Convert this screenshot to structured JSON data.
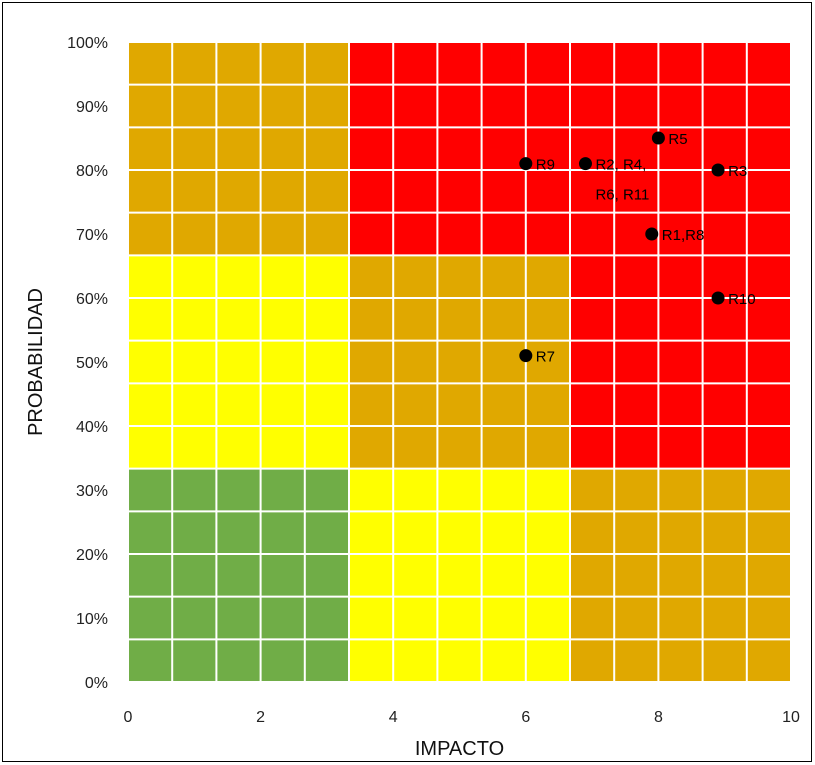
{
  "chart_data": {
    "type": "scatter",
    "title": "",
    "xlabel": "IMPACTO",
    "ylabel": "PROBABILIDAD",
    "xlim": [
      0,
      10
    ],
    "ylim": [
      0,
      100
    ],
    "x_ticks": [
      "0",
      "2",
      "4",
      "6",
      "8",
      "10"
    ],
    "x_tick_values": [
      0,
      2,
      4,
      6,
      8,
      10
    ],
    "y_ticks": [
      "0%",
      "10%",
      "20%",
      "30%",
      "40%",
      "50%",
      "60%",
      "70%",
      "80%",
      "90%",
      "100%"
    ],
    "y_tick_values": [
      0,
      10,
      20,
      30,
      40,
      50,
      60,
      70,
      80,
      90,
      100
    ],
    "grid": true,
    "colors": {
      "green": "#70AD47",
      "yellow": "#FFFF00",
      "orange": "#E0A800",
      "red": "#FF0000",
      "grid_line": "#ffffff",
      "point": "#000000"
    },
    "zones": [
      {
        "x0": 0,
        "x1": 3.33,
        "y0": 0,
        "y1": 33.3,
        "color": "green"
      },
      {
        "x0": 3.33,
        "x1": 6.67,
        "y0": 0,
        "y1": 33.3,
        "color": "yellow"
      },
      {
        "x0": 6.67,
        "x1": 10,
        "y0": 0,
        "y1": 33.3,
        "color": "orange"
      },
      {
        "x0": 0,
        "x1": 3.33,
        "y0": 33.3,
        "y1": 66.7,
        "color": "yellow"
      },
      {
        "x0": 3.33,
        "x1": 6.67,
        "y0": 33.3,
        "y1": 66.7,
        "color": "orange"
      },
      {
        "x0": 6.67,
        "x1": 10,
        "y0": 33.3,
        "y1": 66.7,
        "color": "red"
      },
      {
        "x0": 0,
        "x1": 3.33,
        "y0": 66.7,
        "y1": 100,
        "color": "orange"
      },
      {
        "x0": 3.33,
        "x1": 6.67,
        "y0": 66.7,
        "y1": 100,
        "color": "red"
      },
      {
        "x0": 6.67,
        "x1": 10,
        "y0": 66.7,
        "y1": 100,
        "color": "red"
      }
    ],
    "grid_divisions": {
      "x": 15,
      "y": 15
    },
    "points": [
      {
        "label": "R5",
        "x": 8.0,
        "y": 85,
        "label_lines": [
          "R5"
        ]
      },
      {
        "label": "R9",
        "x": 6.0,
        "y": 81,
        "label_lines": [
          "R9"
        ]
      },
      {
        "label": "R2, R4, R6, R11",
        "x": 6.9,
        "y": 81,
        "label_lines": [
          "R2, R4,",
          "R6, R11"
        ]
      },
      {
        "label": "R3",
        "x": 8.9,
        "y": 80,
        "label_lines": [
          "R3"
        ]
      },
      {
        "label": "R1,R8",
        "x": 7.9,
        "y": 70,
        "label_lines": [
          "R1,R8"
        ]
      },
      {
        "label": "R10",
        "x": 8.9,
        "y": 60,
        "label_lines": [
          "R10"
        ]
      },
      {
        "label": "R7",
        "x": 6.0,
        "y": 51,
        "label_lines": [
          "R7"
        ]
      }
    ]
  }
}
